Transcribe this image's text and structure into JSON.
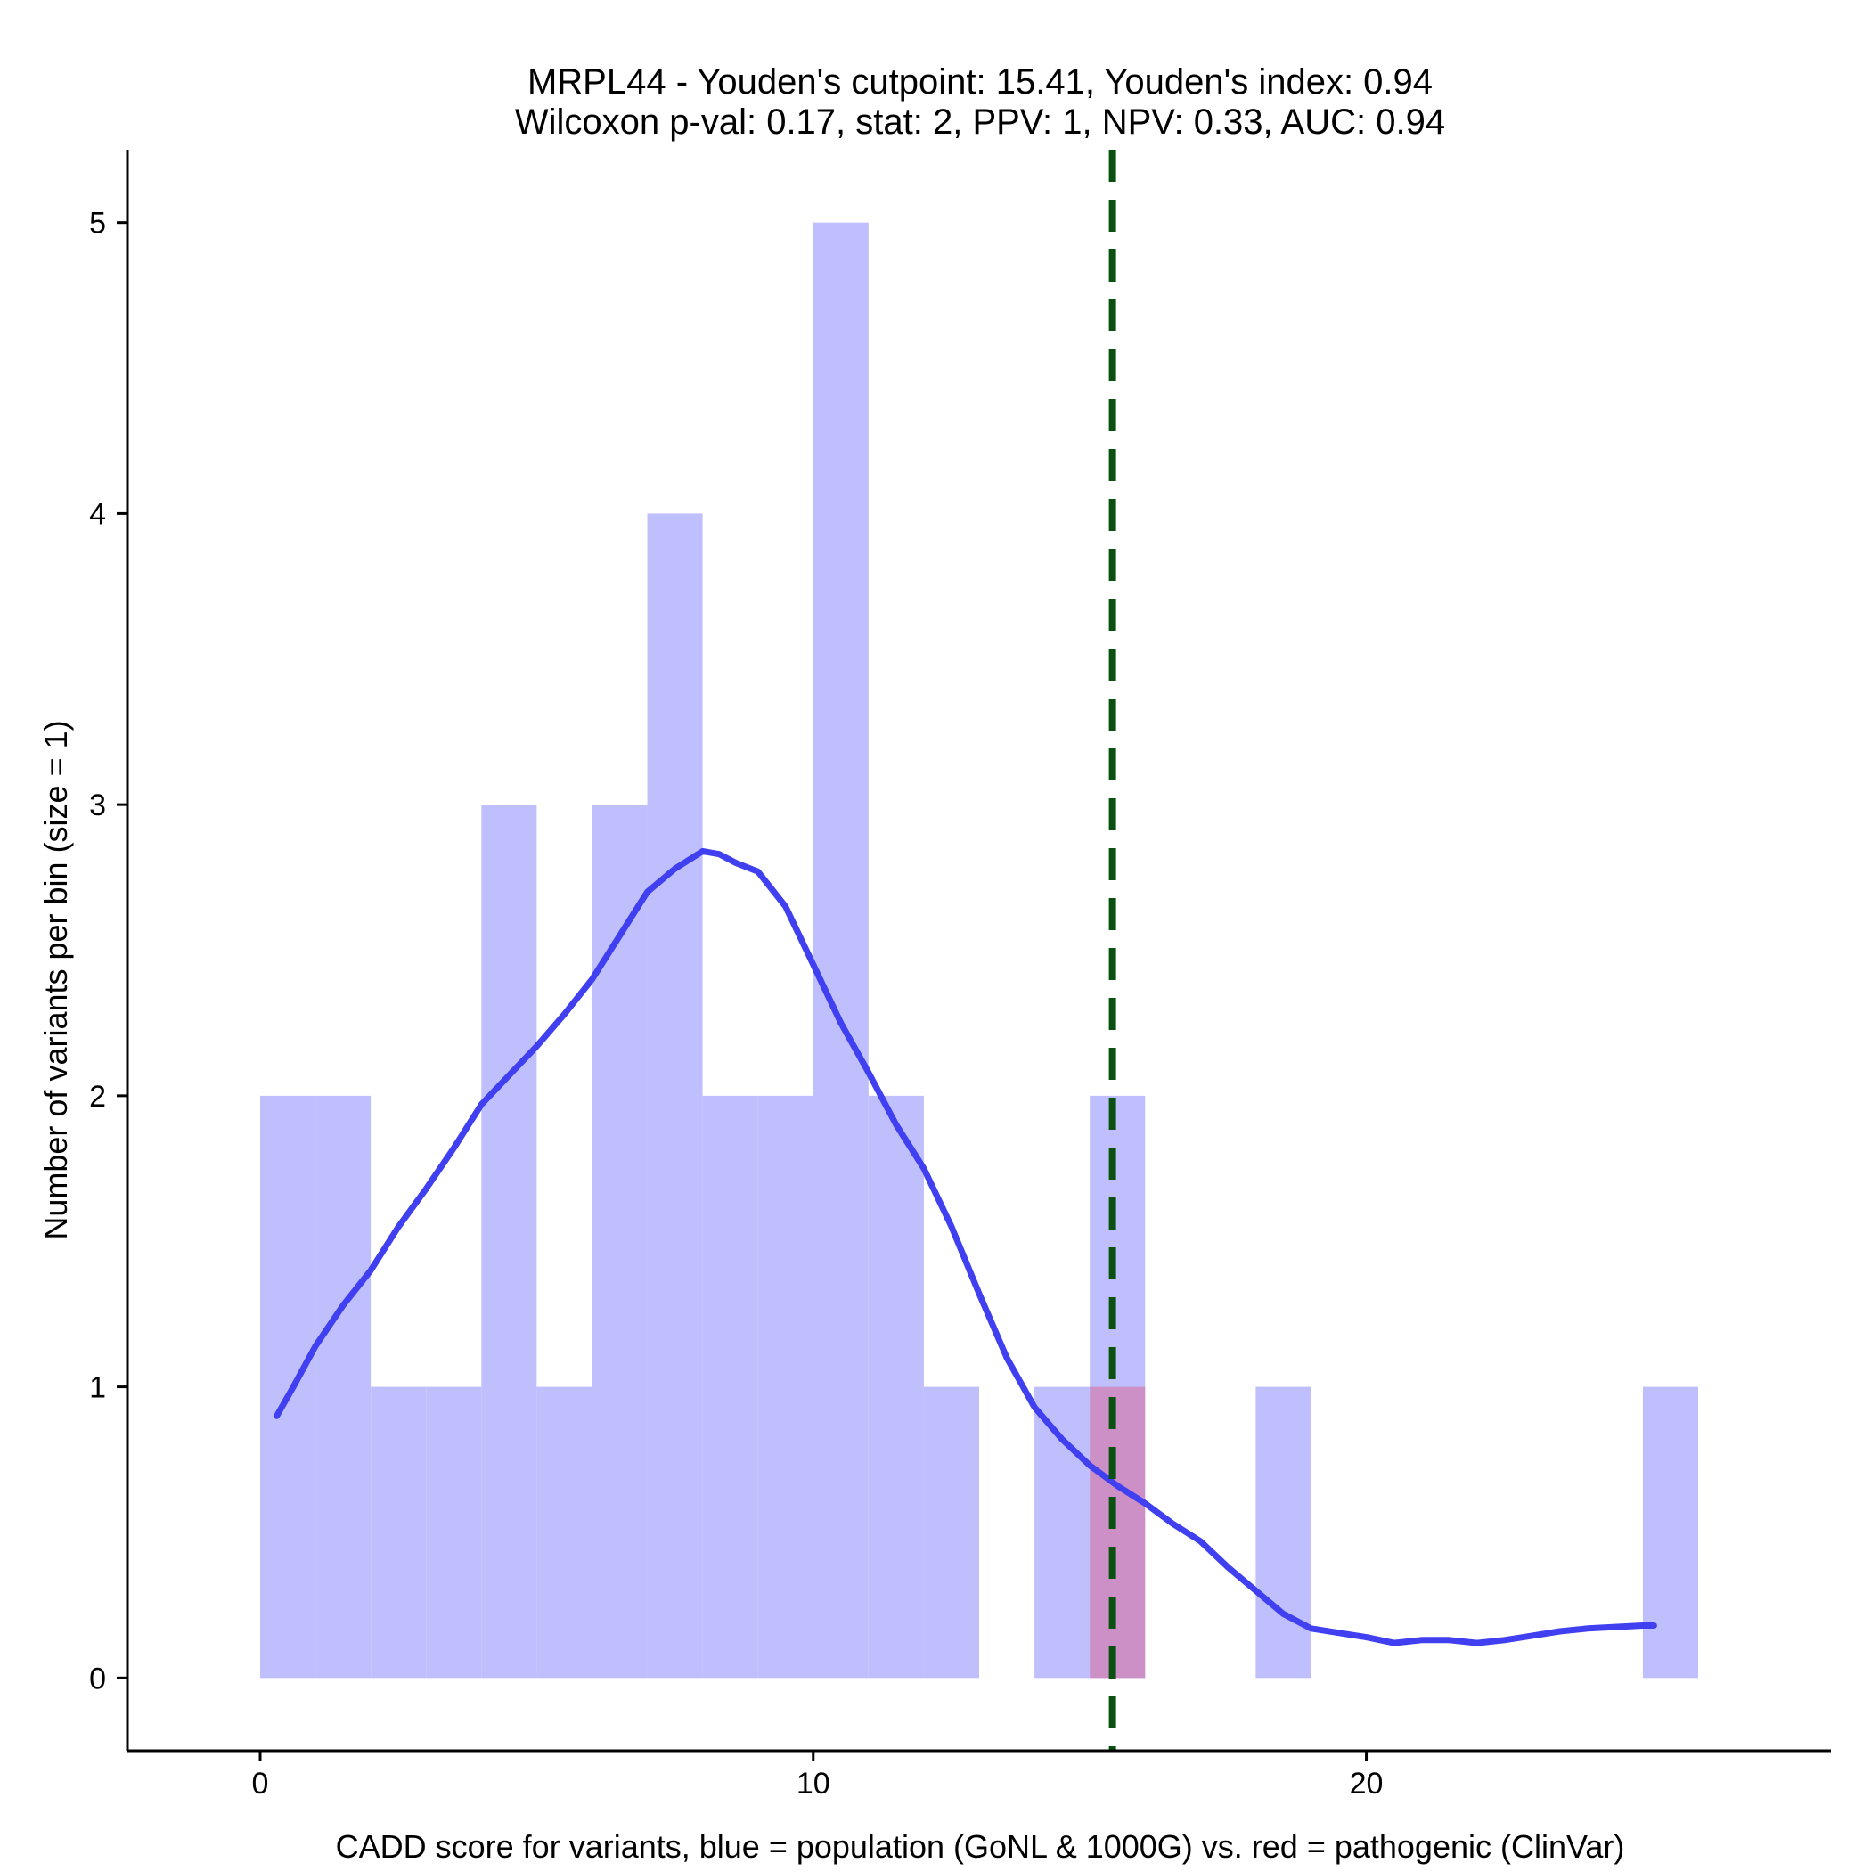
{
  "chart_data": {
    "type": "bar",
    "title_line1": "MRPL44 - Youden's cutpoint: 15.41, Youden's index: 0.94",
    "title_line2": "Wilcoxon p-val: 0.17, stat: 2, PPV: 1, NPV: 0.33, AUC: 0.94",
    "xlabel": "CADD score for variants, blue = population (GoNL & 1000G) vs. red = pathogenic (ClinVar)",
    "ylabel": "Number of variants per bin (size = 1)",
    "xlim": [
      -2.4,
      28.4
    ],
    "ylim": [
      -0.25,
      5.25
    ],
    "xticks": [
      0,
      10,
      20
    ],
    "yticks": [
      0,
      1,
      2,
      3,
      4,
      5
    ],
    "bin_width": 1,
    "cutpoint": 15.41,
    "colors": {
      "population": "#bfbffd",
      "pathogenic": "#cc8fc6",
      "density": "#4040f0",
      "cutpoint": "#0a5010"
    },
    "series": [
      {
        "name": "population",
        "bins": [
          {
            "x": 0,
            "count": 2
          },
          {
            "x": 1,
            "count": 2
          },
          {
            "x": 2,
            "count": 1
          },
          {
            "x": 3,
            "count": 1
          },
          {
            "x": 4,
            "count": 3
          },
          {
            "x": 5,
            "count": 1
          },
          {
            "x": 6,
            "count": 3
          },
          {
            "x": 7,
            "count": 4
          },
          {
            "x": 8,
            "count": 2
          },
          {
            "x": 9,
            "count": 2
          },
          {
            "x": 10,
            "count": 5
          },
          {
            "x": 11,
            "count": 2
          },
          {
            "x": 12,
            "count": 1
          },
          {
            "x": 14,
            "count": 1
          },
          {
            "x": 15,
            "count": 2
          },
          {
            "x": 18,
            "count": 1
          },
          {
            "x": 25,
            "count": 1
          }
        ]
      },
      {
        "name": "pathogenic",
        "bins": [
          {
            "x": 15,
            "count": 1
          }
        ]
      }
    ],
    "density_curve": {
      "x": [
        0.3,
        0.6,
        1.0,
        1.5,
        2.0,
        2.5,
        3.0,
        3.5,
        4.0,
        4.5,
        5.0,
        5.5,
        6.0,
        6.5,
        7.0,
        7.5,
        8.0,
        8.3,
        8.6,
        9.0,
        9.5,
        10.0,
        10.5,
        11.0,
        11.5,
        12.0,
        12.5,
        13.0,
        13.5,
        14.0,
        14.5,
        15.0,
        15.5,
        16.0,
        16.5,
        17.0,
        17.5,
        18.0,
        18.5,
        19.0,
        19.5,
        20.0,
        20.5,
        21.0,
        21.5,
        22.0,
        22.5,
        23.0,
        23.5,
        24.0,
        24.5,
        25.0,
        25.2
      ],
      "y": [
        0.9,
        1.0,
        1.14,
        1.28,
        1.4,
        1.55,
        1.68,
        1.82,
        1.97,
        2.07,
        2.17,
        2.28,
        2.4,
        2.55,
        2.7,
        2.78,
        2.84,
        2.83,
        2.8,
        2.77,
        2.65,
        2.45,
        2.25,
        2.08,
        1.9,
        1.75,
        1.55,
        1.32,
        1.1,
        0.93,
        0.82,
        0.73,
        0.66,
        0.6,
        0.53,
        0.47,
        0.38,
        0.3,
        0.22,
        0.17,
        0.155,
        0.14,
        0.12,
        0.13,
        0.13,
        0.12,
        0.13,
        0.145,
        0.16,
        0.17,
        0.175,
        0.18,
        0.18
      ]
    }
  }
}
